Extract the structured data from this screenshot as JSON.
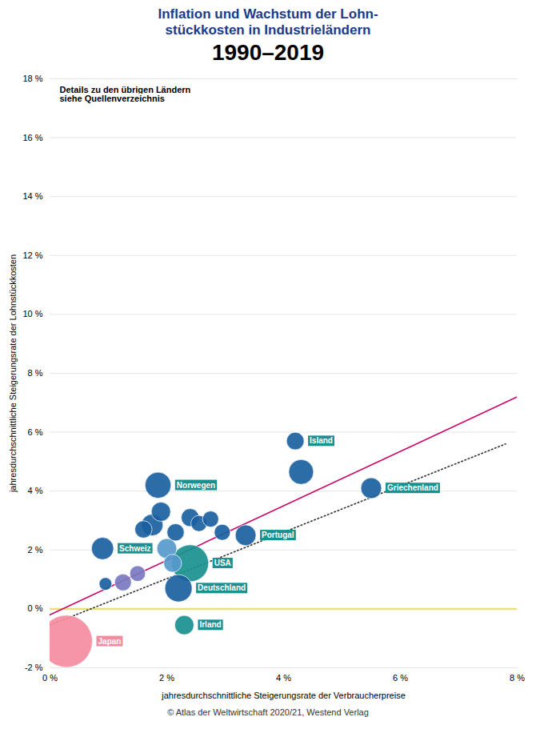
{
  "chart_data": {
    "type": "scatter",
    "title": "Inflation und Wachstum der Lohn-\nstückkosten in Industrieländern",
    "title_color": "#1a3a8c",
    "subtitle": "1990–2019",
    "subtitle_color": "#000000",
    "xlabel": "jahresdurchschnittliche Steigerungsrate der Verbraucherpreise",
    "ylabel": "jahresdurchschnittliche Steigerungsrate der Lohnstückkosten",
    "annotation": "Details zu den übrigen Ländern\nsiehe Quellenverzeichnis",
    "caption": "© Atlas der Weltwirtschaft 2020/21, Westend Verlag",
    "xlim": [
      0,
      8
    ],
    "ylim": [
      -2,
      18
    ],
    "xticks": [
      {
        "value": 0,
        "label": "0 %"
      },
      {
        "value": 2,
        "label": "2 %"
      },
      {
        "value": 4,
        "label": "4 %"
      },
      {
        "value": 6,
        "label": "6 %"
      },
      {
        "value": 8,
        "label": "8 %"
      }
    ],
    "yticks": [
      {
        "value": -2,
        "label": "-2 %"
      },
      {
        "value": 0,
        "label": "0 %"
      },
      {
        "value": 2,
        "label": "2 %"
      },
      {
        "value": 4,
        "label": "4 %"
      },
      {
        "value": 6,
        "label": "6 %"
      },
      {
        "value": 8,
        "label": "8 %"
      },
      {
        "value": 10,
        "label": "10 %"
      },
      {
        "value": 12,
        "label": "12 %"
      },
      {
        "value": 14,
        "label": "14 %"
      },
      {
        "value": 16,
        "label": "16 %"
      },
      {
        "value": 18,
        "label": "18 %"
      }
    ],
    "grid": true,
    "x": [
      1.25,
      1.5,
      1.6,
      1.75,
      1.9,
      2.0,
      2.1,
      2.15,
      2.4,
      2.55,
      2.75,
      2.95,
      4.3,
      0.95,
      0.28,
      0.9,
      1.85,
      2.3,
      2.2,
      2.4,
      3.35,
      4.2,
      5.5
    ],
    "values": [
      0.9,
      1.2,
      2.7,
      2.85,
      3.3,
      2.05,
      1.55,
      2.6,
      3.1,
      2.9,
      3.05,
      2.6,
      4.65,
      0.85,
      -1.1,
      2.05,
      4.2,
      -0.55,
      0.7,
      1.55,
      2.5,
      5.7,
      4.1
    ],
    "sizes": [
      230,
      200,
      240,
      380,
      300,
      320,
      260,
      240,
      260,
      210,
      210,
      210,
      500,
      130,
      2200,
      400,
      550,
      300,
      600,
      1100,
      350,
      250,
      350
    ],
    "colors": [
      "#7878c0",
      "#7878c0",
      "#1a5fa0",
      "#1a5fa0",
      "#1a5fa0",
      "#5599cc",
      "#5599cc",
      "#1a5fa0",
      "#1a5fa0",
      "#1a5fa0",
      "#1a5fa0",
      "#1a5fa0",
      "#1a5fa0",
      "#1a5fa0",
      "#f48ca0",
      "#1a5fa0",
      "#1a5fa0",
      "#1a9090",
      "#1a5fa0",
      "#1a9090",
      "#1a5fa0",
      "#1a5fa0",
      "#1a5fa0"
    ],
    "labels": [
      null,
      null,
      null,
      null,
      null,
      null,
      null,
      null,
      null,
      null,
      null,
      null,
      null,
      null,
      "Japan",
      "Schweiz",
      "Norwegen",
      "Irland",
      "Deutschland",
      "USA",
      "Portugal",
      "Island",
      "Griechenland"
    ],
    "label_colors": [
      null,
      null,
      null,
      null,
      null,
      null,
      null,
      null,
      null,
      null,
      null,
      null,
      null,
      null,
      "#f48ca0",
      "#1a9090",
      "#1a9090",
      "#1a9090",
      "#1a9090",
      "#1a9090",
      "#1a9090",
      "#1a9090",
      "#1a9090"
    ],
    "lines": [
      {
        "x": [
          0.0,
          8.0
        ],
        "values": [
          -0.2,
          7.2
        ],
        "color": "#cc0066",
        "line_style": "solid"
      },
      {
        "x": [
          0.0,
          7.8
        ],
        "values": [
          -0.55,
          5.6
        ],
        "color": "#333333",
        "line_style": "dotted"
      }
    ],
    "reference_lines": [
      {
        "y": 0,
        "color": "#e8e080"
      }
    ]
  }
}
